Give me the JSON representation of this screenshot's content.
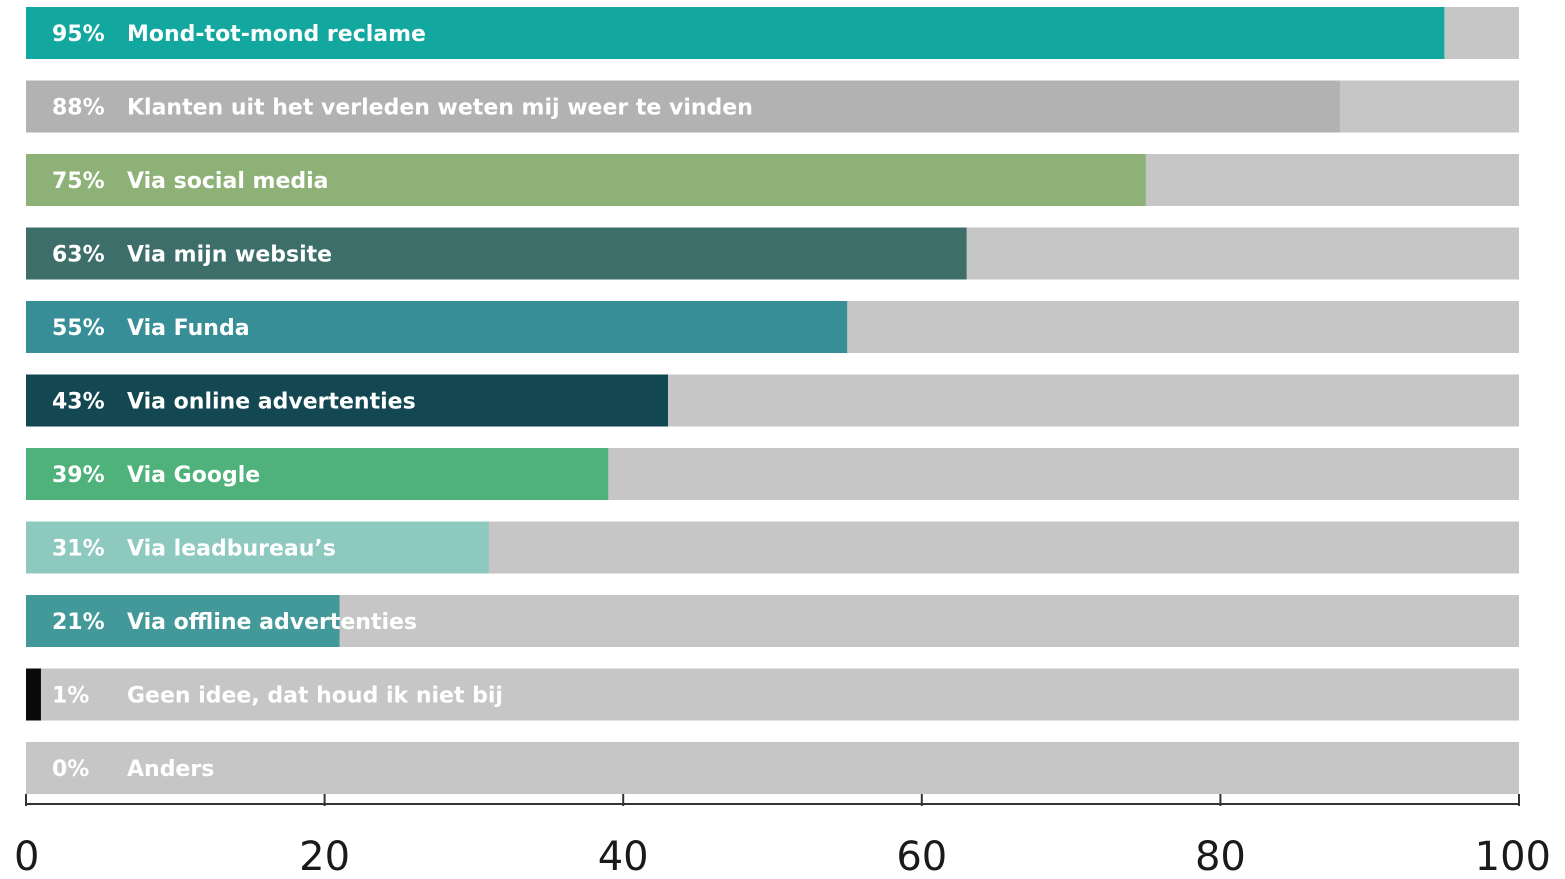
{
  "chart_data": {
    "type": "bar",
    "orientation": "horizontal",
    "title": "",
    "xlabel": "",
    "ylabel": "",
    "xlim": [
      0,
      100
    ],
    "xticks": [
      "0",
      "20",
      "40",
      "60",
      "80",
      "100"
    ],
    "grid": false,
    "track_color": "#c6c6c6",
    "bars": [
      {
        "value": 95,
        "value_label": "95%",
        "label": "Mond-tot-mond reclame",
        "color": "#12a89f"
      },
      {
        "value": 88,
        "value_label": "88%",
        "label": "Klanten uit het verleden weten mij weer te vinden",
        "color": "#b2b2b2"
      },
      {
        "value": 75,
        "value_label": "75%",
        "label": "Via social media",
        "color": "#8db176"
      },
      {
        "value": 63,
        "value_label": "63%",
        "label": "Via mijn website",
        "color": "#3e6e69"
      },
      {
        "value": 55,
        "value_label": "55%",
        "label": "Via Funda",
        "color": "#378e97"
      },
      {
        "value": 43,
        "value_label": "43%",
        "label": "Via online advertenties",
        "color": "#134852"
      },
      {
        "value": 39,
        "value_label": "39%",
        "label": "Via Google",
        "color": "#4fb27b"
      },
      {
        "value": 31,
        "value_label": "31%",
        "label": "Via leadbureau’s",
        "color": "#8ec9c0"
      },
      {
        "value": 21,
        "value_label": "21%",
        "label": "Via offline advertenties",
        "color": "#43999a"
      },
      {
        "value": 1,
        "value_label": "1%",
        "label": "Geen idee, dat houd ik niet bij",
        "color": "#0a0a0a"
      },
      {
        "value": 0,
        "value_label": "0%",
        "label": "Anders",
        "color": "#000000"
      }
    ]
  }
}
